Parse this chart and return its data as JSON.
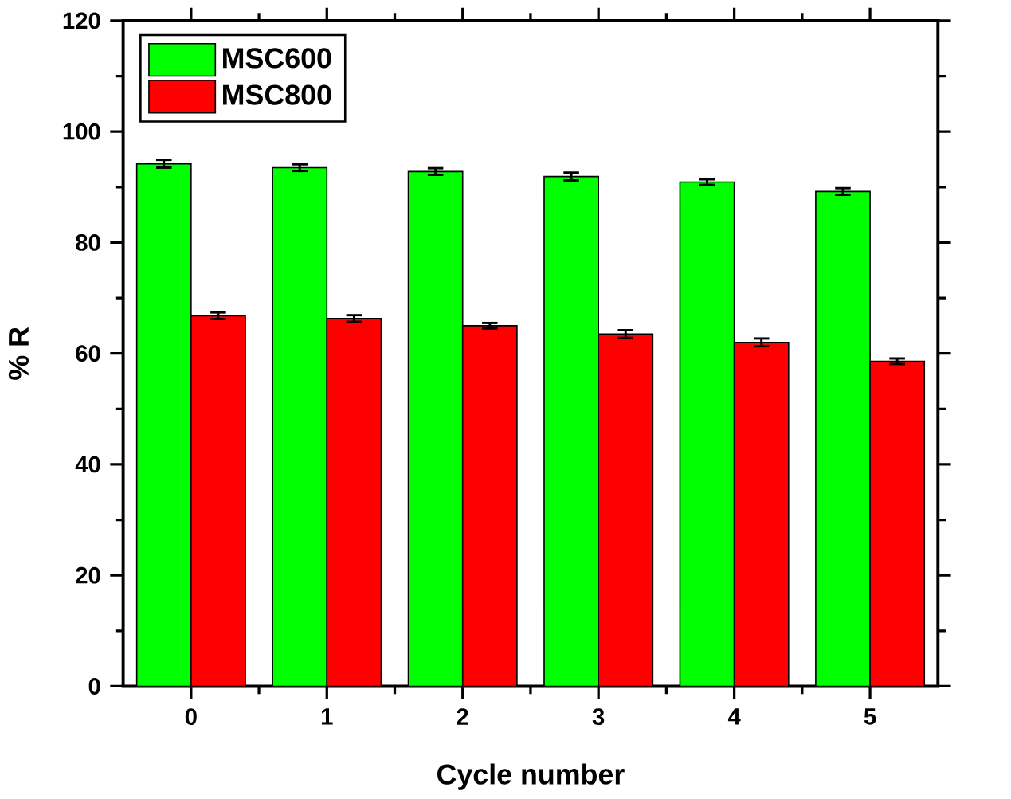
{
  "chart_data": {
    "type": "bar",
    "xlabel": "Cycle number",
    "ylabel": "% R",
    "categories": [
      "0",
      "1",
      "2",
      "3",
      "4",
      "5"
    ],
    "ylim": [
      0,
      120
    ],
    "yticks": [
      0,
      20,
      40,
      60,
      80,
      100,
      120
    ],
    "legend": "top left",
    "series": [
      {
        "name": "MSC600",
        "color": "#00ff00",
        "values": [
          94.2,
          93.5,
          92.8,
          91.9,
          90.9,
          89.2
        ],
        "errors": [
          0.7,
          0.6,
          0.6,
          0.7,
          0.5,
          0.6
        ]
      },
      {
        "name": "MSC800",
        "color": "#ff0000",
        "values": [
          66.8,
          66.3,
          65.0,
          63.5,
          62.0,
          58.6
        ],
        "errors": [
          0.6,
          0.6,
          0.5,
          0.7,
          0.7,
          0.5
        ]
      }
    ]
  }
}
